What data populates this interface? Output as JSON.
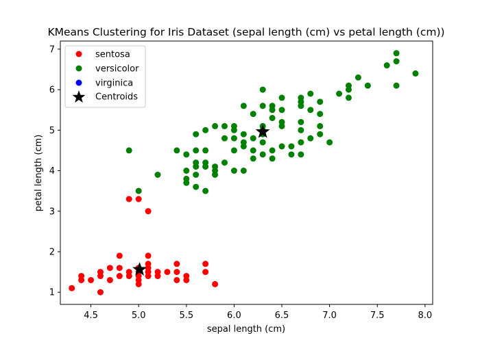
{
  "chart_data": {
    "type": "scatter",
    "title": "KMeans Clustering for Iris Dataset (sepal length (cm) vs petal length (cm))",
    "xlabel": "sepal length (cm)",
    "ylabel": "petal length (cm)",
    "xlim": [
      4.18,
      8.08
    ],
    "ylim": [
      0.7,
      7.2
    ],
    "xticks": [
      4.5,
      5.0,
      5.5,
      6.0,
      6.5,
      7.0,
      7.5,
      8.0
    ],
    "xtick_labels": [
      "4.5",
      "5.0",
      "5.5",
      "6.0",
      "6.5",
      "7.0",
      "7.5",
      "8.0"
    ],
    "yticks": [
      1,
      2,
      3,
      4,
      5,
      6,
      7
    ],
    "ytick_labels": [
      "1",
      "2",
      "3",
      "4",
      "5",
      "6",
      "7"
    ],
    "grid": false,
    "legend_position": "top-left",
    "series": [
      {
        "name": "sentosa",
        "color": "#ff0000",
        "marker": "circle",
        "points": [
          [
            4.3,
            1.1
          ],
          [
            4.4,
            1.3
          ],
          [
            4.4,
            1.4
          ],
          [
            4.5,
            1.3
          ],
          [
            4.6,
            1.0
          ],
          [
            4.6,
            1.4
          ],
          [
            4.6,
            1.5
          ],
          [
            4.7,
            1.3
          ],
          [
            4.7,
            1.6
          ],
          [
            4.8,
            1.4
          ],
          [
            4.8,
            1.6
          ],
          [
            4.8,
            1.9
          ],
          [
            4.9,
            1.4
          ],
          [
            4.9,
            1.5
          ],
          [
            5.0,
            1.2
          ],
          [
            5.0,
            1.3
          ],
          [
            5.0,
            1.4
          ],
          [
            5.0,
            1.5
          ],
          [
            5.0,
            1.6
          ],
          [
            5.1,
            1.4
          ],
          [
            5.1,
            1.5
          ],
          [
            5.1,
            1.6
          ],
          [
            5.1,
            1.7
          ],
          [
            5.1,
            1.9
          ],
          [
            5.2,
            1.4
          ],
          [
            5.2,
            1.5
          ],
          [
            5.3,
            1.5
          ],
          [
            5.4,
            1.3
          ],
          [
            5.4,
            1.5
          ],
          [
            5.4,
            1.7
          ],
          [
            5.5,
            1.3
          ],
          [
            5.5,
            1.4
          ],
          [
            5.7,
            1.5
          ],
          [
            5.7,
            1.7
          ],
          [
            5.8,
            1.2
          ],
          [
            4.9,
            3.3
          ],
          [
            5.0,
            3.3
          ],
          [
            5.1,
            3.0
          ]
        ]
      },
      {
        "name": "versicolor",
        "color": "#008000",
        "marker": "circle",
        "points": [
          [
            4.9,
            4.5
          ],
          [
            5.0,
            3.5
          ],
          [
            5.2,
            3.9
          ],
          [
            5.4,
            4.5
          ],
          [
            5.5,
            3.7
          ],
          [
            5.5,
            3.8
          ],
          [
            5.5,
            4.0
          ],
          [
            5.5,
            4.4
          ],
          [
            5.6,
            3.6
          ],
          [
            5.6,
            3.9
          ],
          [
            5.6,
            4.1
          ],
          [
            5.6,
            4.2
          ],
          [
            5.6,
            4.5
          ],
          [
            5.6,
            4.9
          ],
          [
            5.7,
            3.5
          ],
          [
            5.7,
            4.1
          ],
          [
            5.7,
            4.2
          ],
          [
            5.7,
            4.5
          ],
          [
            5.7,
            5.0
          ],
          [
            5.8,
            3.9
          ],
          [
            5.8,
            4.0
          ],
          [
            5.8,
            4.1
          ],
          [
            5.8,
            5.1
          ],
          [
            5.9,
            4.2
          ],
          [
            5.9,
            4.8
          ],
          [
            5.9,
            5.1
          ],
          [
            6.0,
            4.0
          ],
          [
            6.0,
            4.5
          ],
          [
            6.0,
            4.8
          ],
          [
            6.0,
            5.0
          ],
          [
            6.0,
            5.1
          ],
          [
            6.1,
            4.0
          ],
          [
            6.1,
            4.6
          ],
          [
            6.1,
            4.7
          ],
          [
            6.1,
            4.9
          ],
          [
            6.1,
            5.6
          ],
          [
            6.2,
            4.3
          ],
          [
            6.2,
            4.5
          ],
          [
            6.2,
            4.8
          ],
          [
            6.2,
            5.4
          ],
          [
            6.3,
            4.4
          ],
          [
            6.3,
            4.7
          ],
          [
            6.3,
            4.9
          ],
          [
            6.3,
            5.0
          ],
          [
            6.3,
            5.1
          ],
          [
            6.3,
            5.6
          ],
          [
            6.3,
            6.0
          ],
          [
            6.4,
            4.3
          ],
          [
            6.4,
            4.5
          ],
          [
            6.4,
            5.3
          ],
          [
            6.4,
            5.5
          ],
          [
            6.4,
            5.6
          ],
          [
            6.5,
            4.6
          ],
          [
            6.5,
            5.1
          ],
          [
            6.5,
            5.2
          ],
          [
            6.5,
            5.5
          ],
          [
            6.5,
            5.8
          ],
          [
            6.6,
            4.4
          ],
          [
            6.6,
            4.6
          ],
          [
            6.7,
            4.4
          ],
          [
            6.7,
            4.7
          ],
          [
            6.7,
            5.0
          ],
          [
            6.7,
            5.2
          ],
          [
            6.7,
            5.6
          ],
          [
            6.7,
            5.7
          ],
          [
            6.7,
            5.8
          ],
          [
            6.8,
            4.8
          ],
          [
            6.8,
            5.5
          ],
          [
            6.8,
            5.9
          ],
          [
            6.9,
            4.9
          ],
          [
            6.9,
            5.1
          ],
          [
            6.9,
            5.4
          ],
          [
            6.9,
            5.7
          ],
          [
            7.0,
            4.7
          ],
          [
            7.1,
            5.9
          ],
          [
            7.2,
            5.8
          ],
          [
            7.2,
            6.0
          ],
          [
            7.2,
            6.1
          ],
          [
            7.3,
            6.3
          ],
          [
            7.4,
            6.1
          ],
          [
            7.6,
            6.6
          ],
          [
            7.7,
            6.1
          ],
          [
            7.7,
            6.7
          ],
          [
            7.7,
            6.9
          ],
          [
            7.9,
            6.4
          ]
        ]
      },
      {
        "name": "virginica",
        "color": "#0000ff",
        "marker": "circle",
        "points": []
      }
    ],
    "centroids": {
      "name": "Centroids",
      "color": "#000000",
      "marker": "star",
      "points": [
        [
          5.01,
          1.56
        ],
        [
          6.3,
          4.96
        ]
      ]
    }
  }
}
